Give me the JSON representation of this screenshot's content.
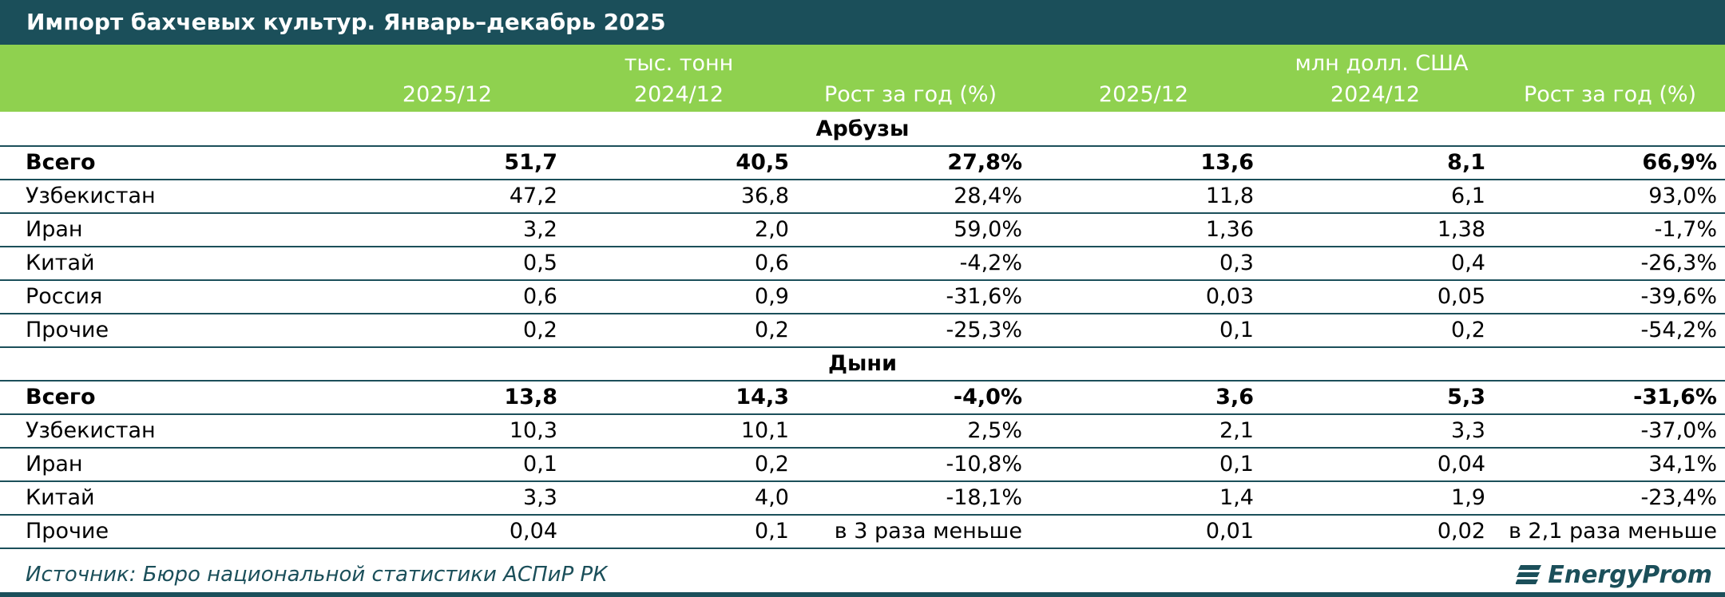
{
  "chart_data": {
    "type": "table",
    "title": "Импорт бахчевых культур. Январь–декабрь 2025",
    "unit_groups": [
      "тыс. тонн",
      "млн долл. США"
    ],
    "columns": [
      "2025/12",
      "2024/12",
      "Рост за год (%)",
      "2025/12",
      "2024/12",
      "Рост за год (%)"
    ],
    "sections": [
      {
        "name": "Арбузы",
        "rows": [
          {
            "label": "Всего",
            "bold": true,
            "values": [
              "51,7",
              "40,5",
              "27,8%",
              "13,6",
              "8,1",
              "66,9%"
            ]
          },
          {
            "label": "Узбекистан",
            "values": [
              "47,2",
              "36,8",
              "28,4%",
              "11,8",
              "6,1",
              "93,0%"
            ]
          },
          {
            "label": "Иран",
            "values": [
              "3,2",
              "2,0",
              "59,0%",
              "1,36",
              "1,38",
              "-1,7%"
            ]
          },
          {
            "label": "Китай",
            "values": [
              "0,5",
              "0,6",
              "-4,2%",
              "0,3",
              "0,4",
              "-26,3%"
            ]
          },
          {
            "label": "Россия",
            "values": [
              "0,6",
              "0,9",
              "-31,6%",
              "0,03",
              "0,05",
              "-39,6%"
            ]
          },
          {
            "label": "Прочие",
            "values": [
              "0,2",
              "0,2",
              "-25,3%",
              "0,1",
              "0,2",
              "-54,2%"
            ]
          }
        ]
      },
      {
        "name": "Дыни",
        "rows": [
          {
            "label": "Всего",
            "bold": true,
            "values": [
              "13,8",
              "14,3",
              "-4,0%",
              "3,6",
              "5,3",
              "-31,6%"
            ]
          },
          {
            "label": "Узбекистан",
            "values": [
              "10,3",
              "10,1",
              "2,5%",
              "2,1",
              "3,3",
              "-37,0%"
            ]
          },
          {
            "label": "Иран",
            "values": [
              "0,1",
              "0,2",
              "-10,8%",
              "0,1",
              "0,04",
              "34,1%"
            ]
          },
          {
            "label": "Китай",
            "values": [
              "3,3",
              "4,0",
              "-18,1%",
              "1,4",
              "1,9",
              "-23,4%"
            ]
          },
          {
            "label": "Прочие",
            "values": [
              "0,04",
              "0,1",
              "в 3 раза меньше",
              "0,01",
              "0,02",
              "в 2,1 раза меньше"
            ]
          }
        ]
      }
    ]
  },
  "footer": {
    "source": "Источник: Бюро национальной статистики АСПиР РК",
    "logo_text": "EnergyProm"
  },
  "colors": {
    "title_bg": "#1b4f5a",
    "header_bg": "#8fd14f",
    "rule": "#1b4f5a"
  }
}
